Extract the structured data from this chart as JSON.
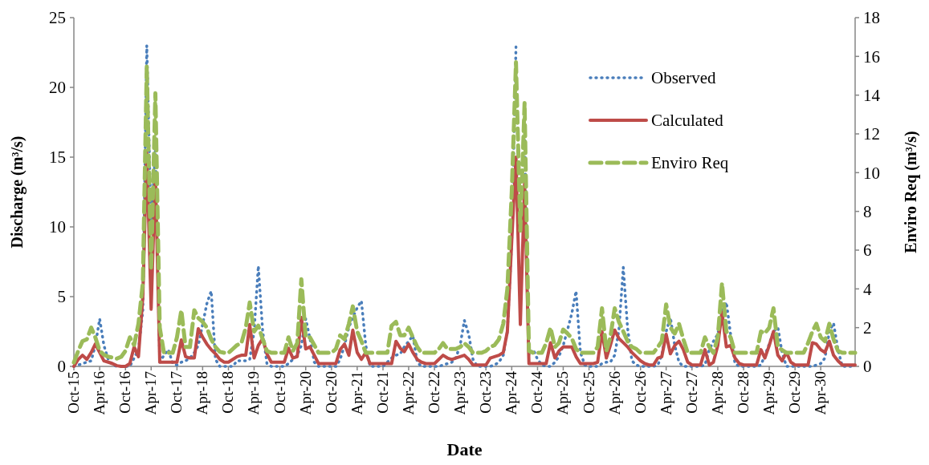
{
  "chart_data": {
    "type": "line",
    "xlabel": "Date",
    "ylabel": "Discharge (m³/s)",
    "y2label": "Enviro Req (m³/s)",
    "x": [
      "2015-10",
      "2015-11",
      "2015-12",
      "2016-01",
      "2016-02",
      "2016-03",
      "2016-04",
      "2016-05",
      "2016-06",
      "2016-07",
      "2016-08",
      "2016-09",
      "2016-10",
      "2016-11",
      "2016-12",
      "2017-01",
      "2017-02",
      "2017-03",
      "2017-04",
      "2017-05",
      "2017-06",
      "2017-07",
      "2017-08",
      "2017-09",
      "2017-10",
      "2017-11",
      "2017-12",
      "2018-01",
      "2018-02",
      "2018-03",
      "2018-04",
      "2018-05",
      "2018-06",
      "2018-07",
      "2018-08",
      "2018-09",
      "2018-10",
      "2018-11",
      "2018-12",
      "2019-01",
      "2019-02",
      "2019-03",
      "2019-04",
      "2019-05",
      "2019-06",
      "2019-07",
      "2019-08",
      "2019-09",
      "2019-10",
      "2019-11",
      "2019-12",
      "2020-01",
      "2020-02",
      "2020-03",
      "2020-04",
      "2020-05",
      "2020-06",
      "2020-07",
      "2020-08",
      "2020-09",
      "2020-10",
      "2020-11",
      "2020-12",
      "2021-01",
      "2021-02",
      "2021-03",
      "2021-04",
      "2021-05",
      "2021-06",
      "2021-07",
      "2021-08",
      "2021-09",
      "2021-10",
      "2021-11",
      "2021-12",
      "2022-01",
      "2022-02",
      "2022-03",
      "2022-04",
      "2022-05",
      "2022-06",
      "2022-07",
      "2022-08",
      "2022-09",
      "2022-10",
      "2022-11",
      "2022-12",
      "2023-01",
      "2023-02",
      "2023-03",
      "2023-04",
      "2023-05",
      "2023-06",
      "2023-07",
      "2023-08",
      "2023-09",
      "2023-10",
      "2023-11",
      "2023-12",
      "2024-01",
      "2024-02",
      "2024-03",
      "2024-04",
      "2024-05",
      "2024-06",
      "2024-07",
      "2024-08",
      "2024-09",
      "2024-10",
      "2024-11",
      "2024-12",
      "2025-01",
      "2025-02",
      "2025-03",
      "2025-04",
      "2025-05",
      "2025-06",
      "2025-07",
      "2025-08",
      "2025-09",
      "2025-10",
      "2025-11",
      "2025-12",
      "2026-01",
      "2026-02",
      "2026-03",
      "2026-04",
      "2026-05",
      "2026-06",
      "2026-07",
      "2026-08",
      "2026-09",
      "2026-10",
      "2026-11",
      "2026-12",
      "2027-01",
      "2027-02",
      "2027-03",
      "2027-04",
      "2027-05",
      "2027-06",
      "2027-07",
      "2027-08",
      "2027-09",
      "2027-10",
      "2027-11",
      "2027-12",
      "2028-01",
      "2028-02",
      "2028-03",
      "2028-04",
      "2028-05",
      "2028-06",
      "2028-07",
      "2028-08",
      "2028-09",
      "2028-10",
      "2028-11",
      "2028-12",
      "2029-01",
      "2029-02",
      "2029-03",
      "2029-04",
      "2029-05",
      "2029-06",
      "2029-07",
      "2029-08",
      "2029-09",
      "2029-10",
      "2029-11",
      "2029-12",
      "2030-01",
      "2030-02",
      "2030-03",
      "2030-04",
      "2030-05",
      "2030-06",
      "2030-07",
      "2030-08",
      "2030-09",
      "2030-10",
      "2030-11",
      "2030-12"
    ],
    "series": [
      {
        "name": "Observed",
        "color": "#4a7ebb",
        "line_style": "dotted",
        "values": [
          0,
          0.1,
          0.2,
          0.3,
          0.4,
          1.5,
          3.4,
          1.5,
          0.5,
          0.1,
          0,
          0,
          0,
          0,
          0.6,
          1.2,
          4,
          23,
          10,
          15.5,
          0.3,
          0.8,
          1.2,
          0.2,
          0.1,
          0.3,
          0.4,
          0.6,
          1.0,
          1.5,
          3.0,
          4.5,
          5.4,
          0.5,
          0,
          0,
          0,
          0,
          0.4,
          0.4,
          0.4,
          0.5,
          2.5,
          7.2,
          2.5,
          0.2,
          0,
          0,
          0,
          0,
          0.2,
          0.5,
          0.8,
          1.5,
          3.4,
          2.0,
          0.3,
          0,
          0,
          0,
          0,
          0,
          0.5,
          1.5,
          2.8,
          3.5,
          4.2,
          4.7,
          1.5,
          0,
          0,
          0,
          0,
          0.3,
          0.6,
          0.8,
          0.9,
          1.4,
          1.8,
          2.2,
          0.3,
          0,
          0,
          0,
          0,
          0,
          0.1,
          0.2,
          0.3,
          0.6,
          1.5,
          3.3,
          2.3,
          0.5,
          0,
          0,
          0,
          0,
          0.1,
          0.3,
          0.8,
          2.5,
          9,
          22.9,
          null,
          17,
          0.8,
          1.2,
          0.5,
          0.1,
          0,
          0,
          0.3,
          0.7,
          1.5,
          2.6,
          3.8,
          5.4,
          1.0,
          0.1,
          0,
          0,
          0,
          0.2,
          0.3,
          0.3,
          0.8,
          2.6,
          7.1,
          2.8,
          0.4,
          0.1,
          0,
          0,
          0,
          0,
          0.1,
          0.8,
          2.5,
          3.5,
          1.5,
          0.3,
          0,
          0,
          0,
          0,
          0,
          0.1,
          1.2,
          1.8,
          2.3,
          3.9,
          4.6,
          2.3,
          0.2,
          0,
          0,
          0,
          0,
          0,
          0.1,
          0.8,
          1.6,
          2.5,
          2.8,
          1.0,
          0,
          0,
          0,
          0,
          0,
          0,
          0,
          0.1,
          0.2,
          0.6,
          2.5,
          3.1,
          1.2,
          0,
          0,
          0,
          0
        ]
      },
      {
        "name": "Calculated",
        "color": "#be4b48",
        "line_style": "solid",
        "values": [
          0,
          0.5,
          0.8,
          0.5,
          1.0,
          1.6,
          1.0,
          0.4,
          0.3,
          0.2,
          0.05,
          0,
          0,
          0.2,
          1.4,
          0.7,
          5,
          15.3,
          4.1,
          13.8,
          0.3,
          0.3,
          0.3,
          0.3,
          0.3,
          1.9,
          0.7,
          0.6,
          0.6,
          2.7,
          2.1,
          1.6,
          1.2,
          0.9,
          0.5,
          0.3,
          0.3,
          0.5,
          0.7,
          0.8,
          0.8,
          3.0,
          0.6,
          1.5,
          2.0,
          0.9,
          0.3,
          0.3,
          0.3,
          0.3,
          1.3,
          0.6,
          0.7,
          3.5,
          1.25,
          1.4,
          0.8,
          0.2,
          0.2,
          0.2,
          0.2,
          0.2,
          1.2,
          1.6,
          0.8,
          2.6,
          1.0,
          0.5,
          1.0,
          0.2,
          0.2,
          0.2,
          0.2,
          0.2,
          0.2,
          1.8,
          1.3,
          1.05,
          1.6,
          1.0,
          0.5,
          0.3,
          0.2,
          0.2,
          0.2,
          0.5,
          0.8,
          0.6,
          0.5,
          0.6,
          0.7,
          0.8,
          0.5,
          0.1,
          0.1,
          0.1,
          0.1,
          0.6,
          0.7,
          0.8,
          1.0,
          2.5,
          9,
          15.0,
          3.0,
          13.1,
          0.2,
          0.2,
          0.2,
          0.2,
          0.2,
          1.7,
          0.6,
          1.1,
          1.4,
          1.4,
          1.4,
          0.7,
          0.2,
          0.2,
          0.2,
          0.2,
          0.3,
          2.5,
          0.6,
          1.5,
          2.6,
          2.0,
          1.7,
          1.4,
          1.0,
          0.7,
          0.4,
          0.2,
          0.1,
          0.1,
          0.6,
          0.7,
          2.3,
          0.9,
          1.5,
          1.8,
          1.2,
          0.3,
          0.1,
          0.1,
          0.1,
          1.2,
          0.1,
          0.3,
          1.5,
          3.9,
          1.4,
          1.5,
          0.6,
          0.2,
          0.1,
          0.1,
          0.1,
          0.1,
          1.2,
          0.6,
          1.5,
          2.5,
          0.8,
          0.4,
          1.0,
          0.3,
          0.1,
          0.1,
          0.1,
          0.1,
          1.7,
          1.6,
          1.2,
          1.0,
          1.8,
          0.8,
          0.4,
          0.1,
          0.1,
          0.1,
          0.1
        ]
      },
      {
        "name": "Enviro Req",
        "color": "#9bbb59",
        "line_style": "dashed",
        "axis": "y2",
        "values": [
          0.2,
          0.8,
          1.3,
          1.4,
          2.0,
          1.5,
          0.8,
          0.6,
          0.5,
          0.45,
          0.4,
          0.5,
          0.8,
          1.5,
          1.1,
          2.2,
          4.3,
          15.5,
          5.0,
          14.1,
          2.0,
          0.7,
          0.7,
          0.7,
          1.5,
          2.9,
          1.0,
          1.0,
          2.9,
          2.5,
          2.3,
          2.0,
          1.4,
          1.0,
          0.75,
          0.7,
          0.7,
          0.9,
          1.1,
          1.2,
          2.0,
          3.3,
          1.8,
          2.1,
          1.4,
          0.8,
          0.7,
          0.7,
          0.7,
          0.7,
          1.5,
          0.8,
          1.2,
          4.5,
          1.5,
          1.5,
          1.1,
          0.7,
          0.7,
          0.7,
          0.7,
          0.9,
          1.6,
          1.4,
          2.2,
          3.1,
          1.8,
          1.3,
          0.7,
          0.7,
          0.7,
          0.7,
          0.7,
          0.7,
          2.1,
          2.3,
          1.6,
          1.6,
          2.0,
          1.5,
          1.0,
          0.7,
          0.7,
          0.7,
          0.7,
          0.9,
          1.2,
          0.9,
          0.9,
          0.9,
          1.0,
          1.2,
          1.0,
          0.7,
          0.7,
          0.7,
          0.8,
          1.0,
          1.1,
          1.4,
          2.2,
          4.0,
          9,
          15.7,
          7.0,
          13.6,
          0.8,
          0.7,
          0.7,
          0.7,
          1.2,
          2.0,
          1.0,
          1.2,
          1.9,
          1.7,
          1.45,
          0.9,
          0.7,
          0.7,
          0.7,
          0.7,
          1.0,
          3.0,
          0.8,
          1.5,
          3.0,
          2.3,
          1.8,
          1.3,
          1.0,
          0.9,
          0.7,
          0.7,
          0.7,
          0.7,
          1.0,
          1.3,
          3.2,
          2.0,
          1.7,
          2.2,
          1.4,
          0.7,
          0.7,
          0.7,
          0.7,
          1.5,
          1.0,
          0.7,
          1.5,
          4.3,
          1.8,
          1.5,
          0.7,
          0.7,
          0.7,
          0.7,
          0.7,
          0.7,
          1.8,
          1.7,
          2.0,
          3.0,
          1.0,
          0.85,
          0.7,
          0.7,
          0.7,
          0.7,
          0.7,
          1.2,
          1.8,
          2.2,
          1.5,
          1.3,
          2.2,
          1.4,
          0.8,
          0.7,
          0.7,
          0.7,
          0.7
        ]
      }
    ],
    "xlim": [
      "2015-10",
      "2030-12"
    ],
    "xticks": [
      {
        "value": "2015-10",
        "label": "Oct-15"
      },
      {
        "value": "2016-04",
        "label": "Apr-16"
      },
      {
        "value": "2016-10",
        "label": "Oct-16"
      },
      {
        "value": "2017-04",
        "label": "Apr-17"
      },
      {
        "value": "2017-10",
        "label": "Oct-17"
      },
      {
        "value": "2018-04",
        "label": "Apr-18"
      },
      {
        "value": "2018-10",
        "label": "Oct-18"
      },
      {
        "value": "2019-04",
        "label": "Apr-19"
      },
      {
        "value": "2019-10",
        "label": "Oct-19"
      },
      {
        "value": "2020-04",
        "label": "Apr-20"
      },
      {
        "value": "2020-10",
        "label": "Oct-20"
      },
      {
        "value": "2021-04",
        "label": "Apr-21"
      },
      {
        "value": "2021-10",
        "label": "Oct-21"
      },
      {
        "value": "2022-04",
        "label": "Apr-22"
      },
      {
        "value": "2022-10",
        "label": "Oct-22"
      },
      {
        "value": "2023-04",
        "label": "Apr-23"
      },
      {
        "value": "2023-10",
        "label": "Oct-23"
      },
      {
        "value": "2024-04",
        "label": "Apr-24"
      },
      {
        "value": "2024-10",
        "label": "Oct-24"
      },
      {
        "value": "2025-04",
        "label": "Apr-25"
      },
      {
        "value": "2025-10",
        "label": "Oct-25"
      },
      {
        "value": "2026-04",
        "label": "Apr-26"
      },
      {
        "value": "2026-10",
        "label": "Oct-26"
      },
      {
        "value": "2027-04",
        "label": "Apr-27"
      },
      {
        "value": "2027-10",
        "label": "Oct-27"
      },
      {
        "value": "2028-04",
        "label": "Apr-28"
      },
      {
        "value": "2028-10",
        "label": "Oct-28"
      },
      {
        "value": "2029-04",
        "label": "Apr-29"
      },
      {
        "value": "2029-10",
        "label": "Oct-29"
      },
      {
        "value": "2030-04",
        "label": "Apr-30"
      }
    ],
    "ylim": [
      0,
      25
    ],
    "yticks": [
      0,
      5,
      10,
      15,
      20,
      25
    ],
    "y2lim": [
      0,
      18
    ],
    "y2ticks": [
      0,
      2,
      4,
      6,
      8,
      10,
      12,
      14,
      16,
      18
    ],
    "grid": false,
    "legend": "top right",
    "marker": "none"
  }
}
